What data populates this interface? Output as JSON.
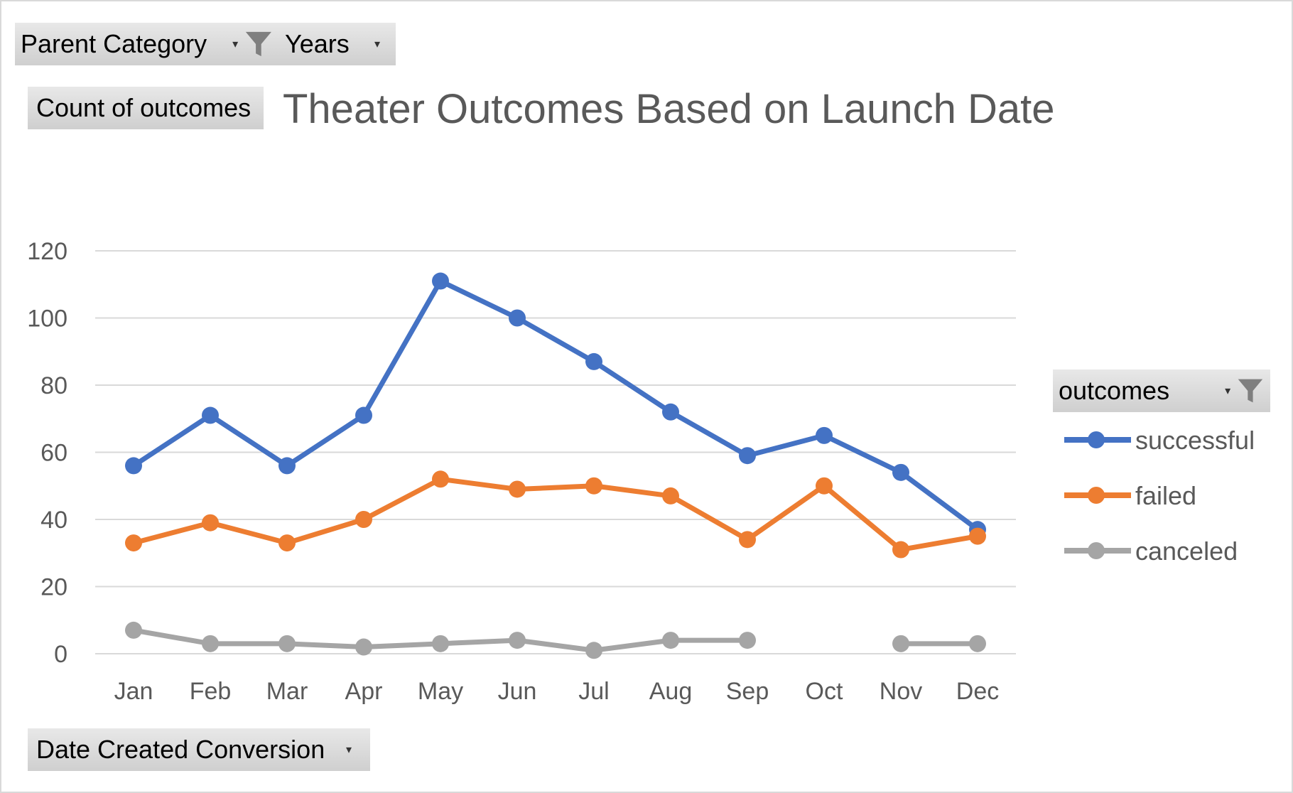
{
  "filters": {
    "parent_category": "Parent Category",
    "years": "Years",
    "values_field": "Count of outcomes",
    "axis_field": "Date Created Conversion",
    "legend_field": "outcomes"
  },
  "icons": {
    "filter": "filter-funnel-icon",
    "dropdown": "dropdown-arrow-icon"
  },
  "chart_data": {
    "type": "line",
    "title": "Theater Outcomes Based on Launch Date",
    "xlabel": "",
    "ylabel": "",
    "ylim": [
      0,
      120
    ],
    "yticks": [
      0,
      20,
      40,
      60,
      80,
      100,
      120
    ],
    "grid": true,
    "legend_position": "right",
    "categories": [
      "Jan",
      "Feb",
      "Mar",
      "Apr",
      "May",
      "Jun",
      "Jul",
      "Aug",
      "Sep",
      "Oct",
      "Nov",
      "Dec"
    ],
    "series": [
      {
        "name": "successful",
        "color": "#4472c4",
        "values": [
          56,
          71,
          56,
          71,
          111,
          100,
          87,
          72,
          59,
          65,
          54,
          37
        ]
      },
      {
        "name": "failed",
        "color": "#ed7d31",
        "values": [
          33,
          39,
          33,
          40,
          52,
          49,
          50,
          47,
          34,
          50,
          31,
          35
        ]
      },
      {
        "name": "canceled",
        "color": "#a5a5a5",
        "values": [
          7,
          3,
          3,
          2,
          3,
          4,
          1,
          4,
          4,
          null,
          3,
          3
        ]
      }
    ]
  }
}
